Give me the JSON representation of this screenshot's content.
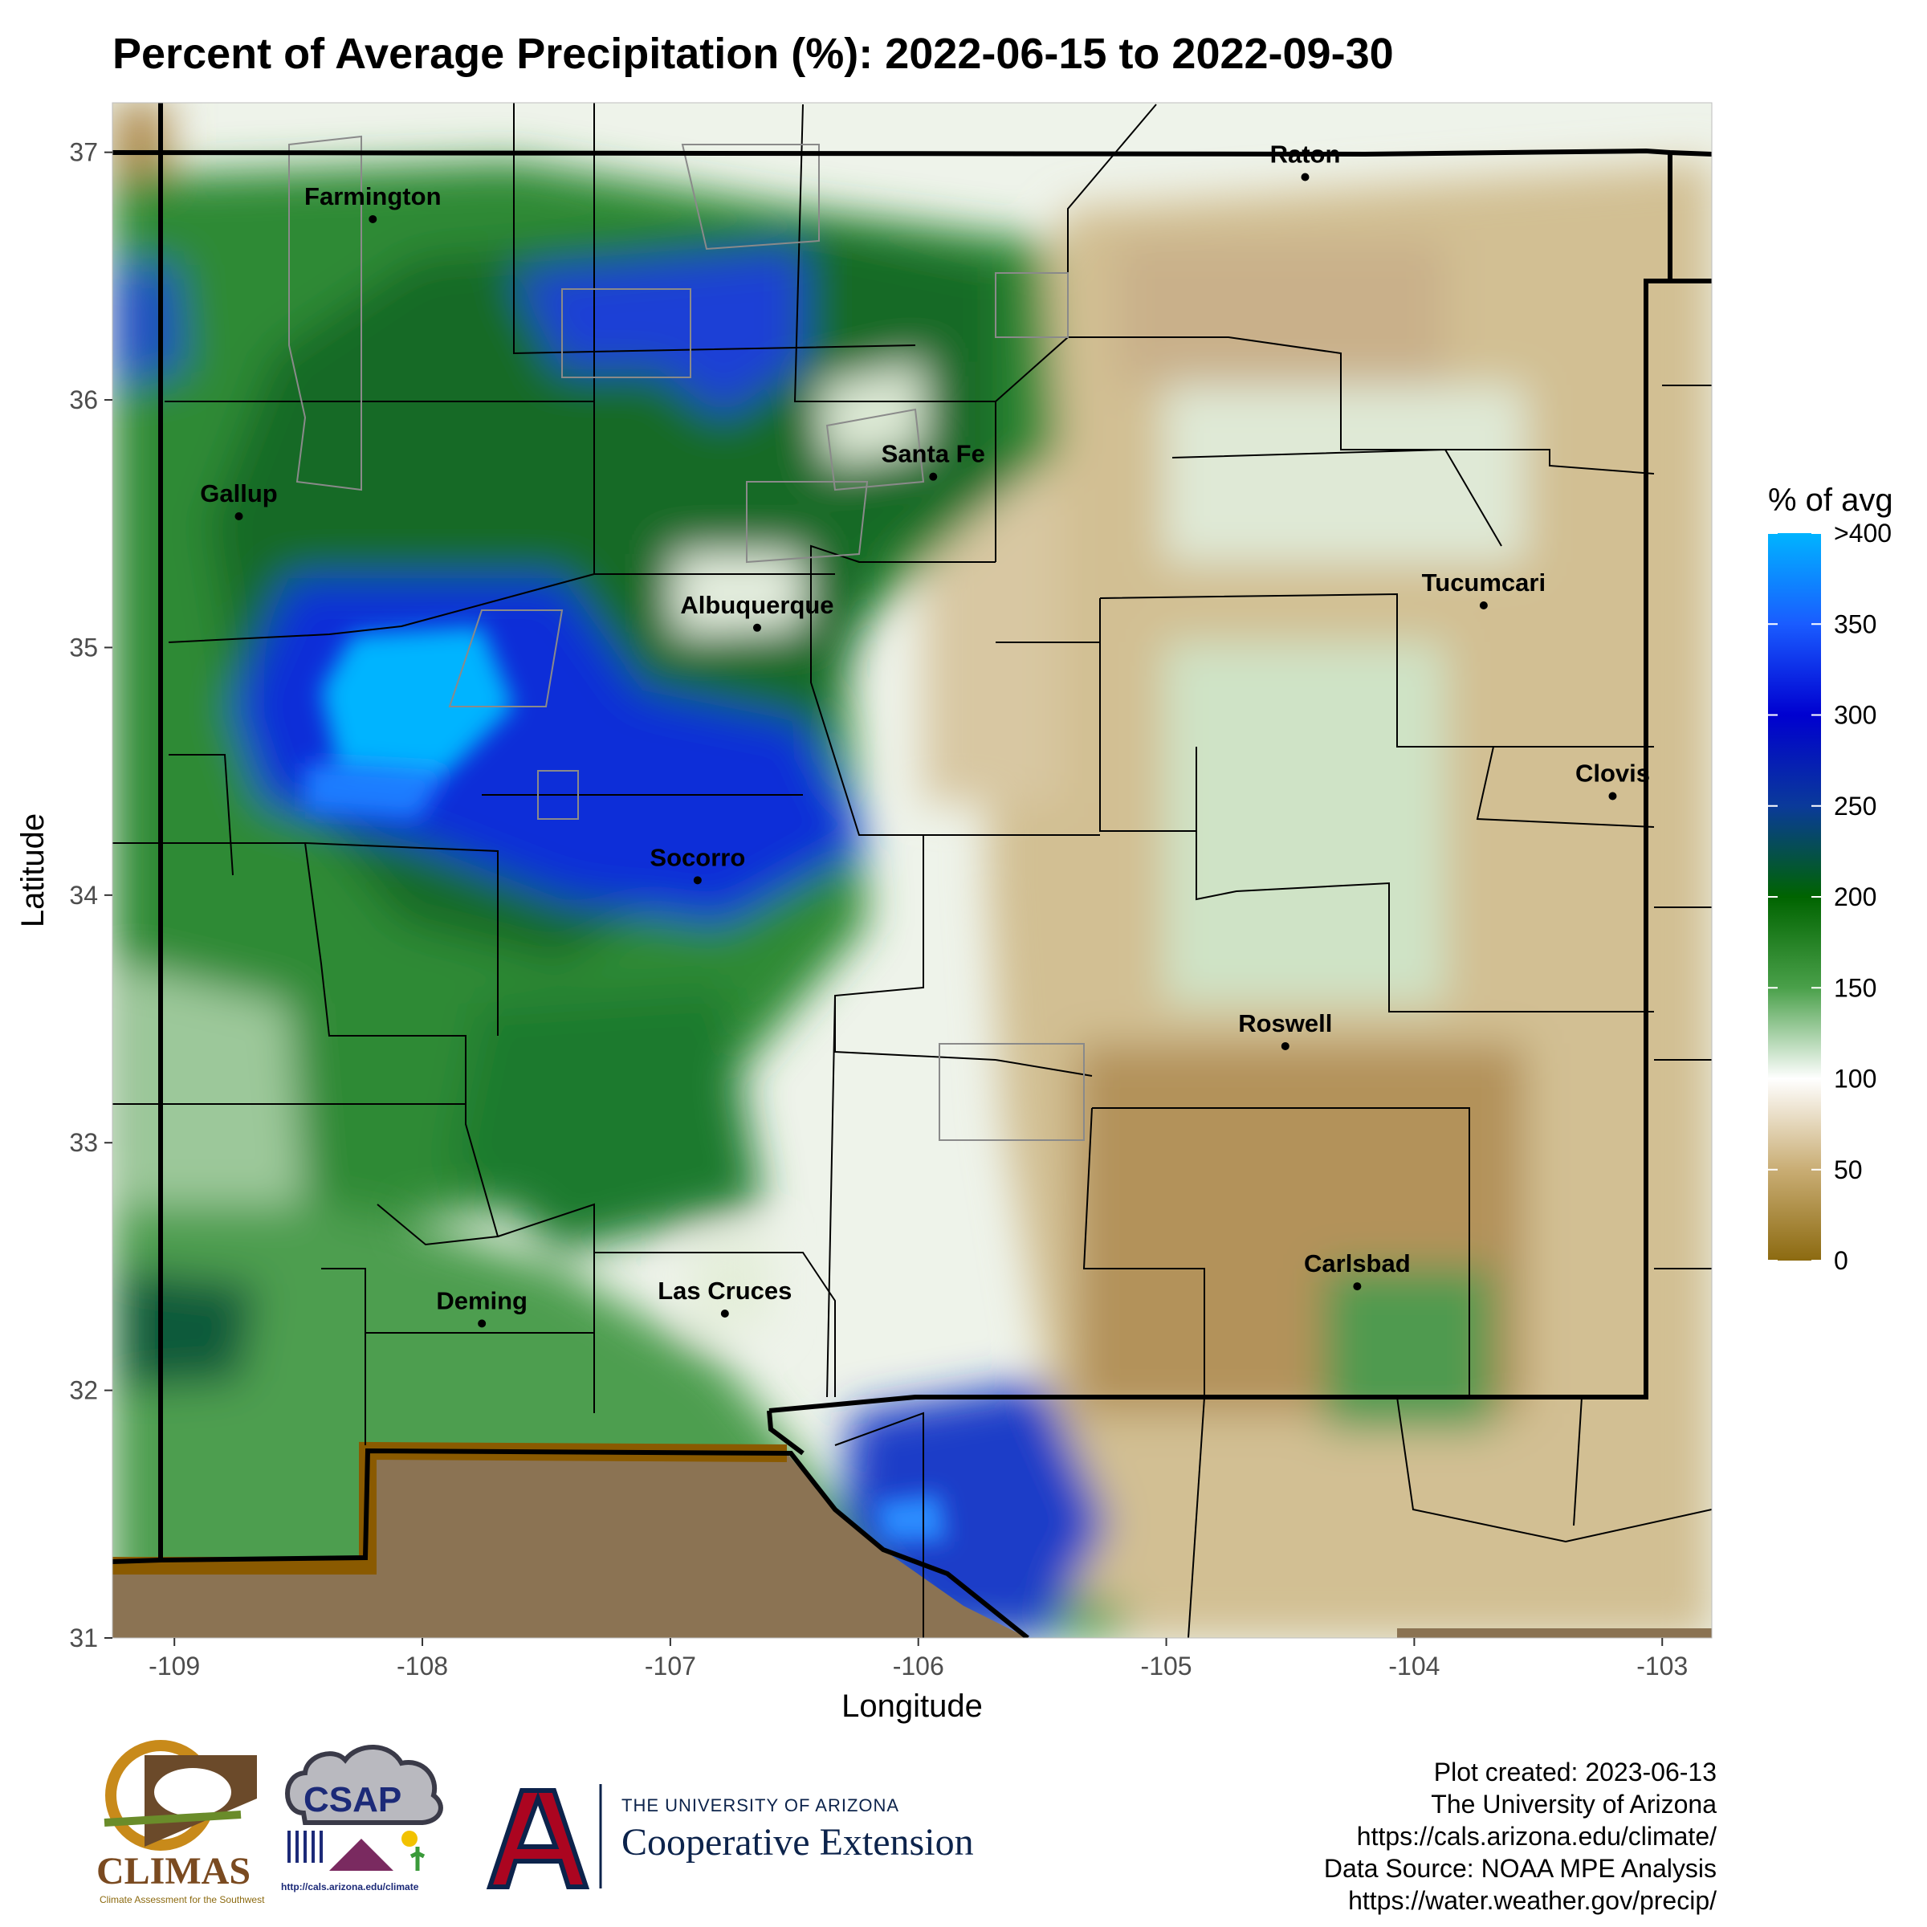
{
  "title": "Percent of Average Precipitation (%): 2022-06-15 to 2022-09-30",
  "map": {
    "x_axis_label": "Longitude",
    "y_axis_label": "Latitude",
    "x_ticks": [
      {
        "value": -109,
        "label": "-109"
      },
      {
        "value": -108,
        "label": "-108"
      },
      {
        "value": -107,
        "label": "-107"
      },
      {
        "value": -106,
        "label": "-106"
      },
      {
        "value": -105,
        "label": "-105"
      },
      {
        "value": -104,
        "label": "-104"
      },
      {
        "value": -103,
        "label": "-103"
      }
    ],
    "y_ticks": [
      {
        "value": 31,
        "label": "31"
      },
      {
        "value": 32,
        "label": "32"
      },
      {
        "value": 33,
        "label": "33"
      },
      {
        "value": 34,
        "label": "34"
      },
      {
        "value": 35,
        "label": "35"
      },
      {
        "value": 36,
        "label": "36"
      },
      {
        "value": 37,
        "label": "37"
      }
    ],
    "lon_range": [
      -109.25,
      -102.8
    ],
    "lat_range": [
      31.0,
      37.2
    ],
    "cities": [
      {
        "name": "Farmington",
        "lon": -108.2,
        "lat": 36.73
      },
      {
        "name": "Raton",
        "lon": -104.44,
        "lat": 36.9
      },
      {
        "name": "Gallup",
        "lon": -108.74,
        "lat": 35.53
      },
      {
        "name": "Santa Fe",
        "lon": -105.94,
        "lat": 35.69
      },
      {
        "name": "Albuquerque",
        "lon": -106.65,
        "lat": 35.08
      },
      {
        "name": "Tucumcari",
        "lon": -103.72,
        "lat": 35.17
      },
      {
        "name": "Clovis",
        "lon": -103.2,
        "lat": 34.4
      },
      {
        "name": "Socorro",
        "lon": -106.89,
        "lat": 34.06
      },
      {
        "name": "Roswell",
        "lon": -104.52,
        "lat": 33.39
      },
      {
        "name": "Carlsbad",
        "lon": -104.23,
        "lat": 32.42
      },
      {
        "name": "Deming",
        "lon": -107.76,
        "lat": 32.27
      },
      {
        "name": "Las Cruces",
        "lon": -106.78,
        "lat": 32.31
      }
    ]
  },
  "legend": {
    "title": "% of avg",
    "ticks": [
      {
        "value": 0,
        "label": "0"
      },
      {
        "value": 50,
        "label": "50"
      },
      {
        "value": 100,
        "label": "100"
      },
      {
        "value": 150,
        "label": "150"
      },
      {
        "value": 200,
        "label": "200"
      },
      {
        "value": 250,
        "label": "250"
      },
      {
        "value": 300,
        "label": "300"
      },
      {
        "value": 350,
        "label": "350"
      },
      {
        "value": 400,
        "label": ">400"
      }
    ],
    "colors": {
      "dry": "#8c6a10",
      "neutral": "#ffffff",
      "wet": "#006400",
      "very_wet": "#0000d0",
      "extreme": "#00b4ff"
    }
  },
  "credits": [
    "Plot created: 2023-06-13",
    "The University of Arizona",
    "https://cals.arizona.edu/climate/",
    "Data Source: NOAA MPE Analysis",
    "https://water.weather.gov/precip/"
  ],
  "logos": {
    "climas_name": "CLIMAS",
    "climas_tagline": "Climate Assessment for the Southwest",
    "csap_name": "CSAP",
    "csap_url": "http://cals.arizona.edu/climate",
    "ua_line1": "THE UNIVERSITY OF ARIZONA",
    "ua_line2": "Cooperative Extension"
  }
}
